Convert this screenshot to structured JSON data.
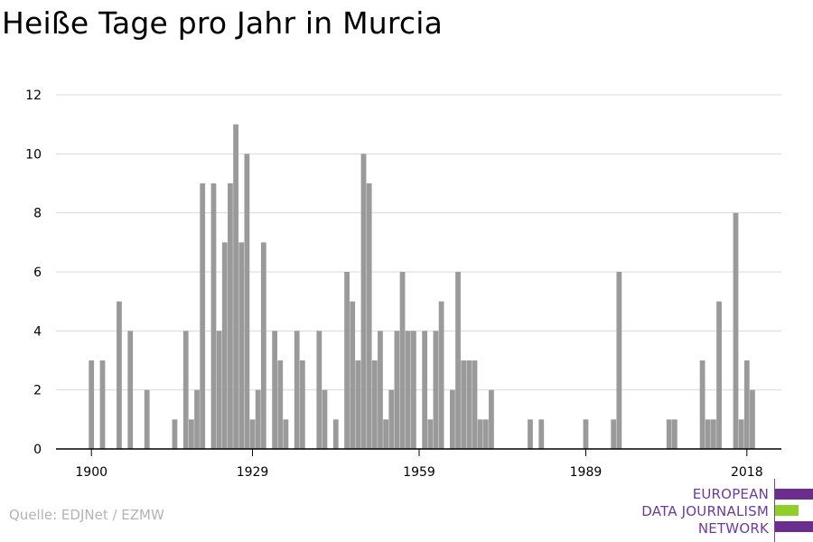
{
  "title": "Heiße Tage pro Jahr in Murcia",
  "source": "Quelle: EDJNet / EZMW",
  "logo": {
    "line1": "EUROPEAN",
    "line2": "DATA JOURNALISM",
    "line3": "NETWORK",
    "bar_colors": [
      "#6b2d8e",
      "#8fcf2a",
      "#6b2d8e"
    ]
  },
  "colors": {
    "bar": "#9a9a9a",
    "grid": "#d9d9d9",
    "axis": "#000000"
  },
  "chart_data": {
    "type": "bar",
    "title": "Heiße Tage pro Jahr in Murcia",
    "xlabel": "",
    "ylabel": "",
    "ylim": [
      0,
      12
    ],
    "xlim": [
      1900,
      2018
    ],
    "yticks": [
      0,
      2,
      4,
      6,
      8,
      10,
      12
    ],
    "xticks": [
      1900,
      1929,
      1959,
      1989,
      2018
    ],
    "grid": true,
    "x": [
      1900,
      1902,
      1905,
      1907,
      1910,
      1915,
      1917,
      1918,
      1919,
      1920,
      1922,
      1923,
      1924,
      1925,
      1926,
      1927,
      1928,
      1929,
      1930,
      1931,
      1933,
      1934,
      1935,
      1937,
      1938,
      1941,
      1942,
      1944,
      1946,
      1947,
      1948,
      1949,
      1950,
      1951,
      1952,
      1953,
      1954,
      1955,
      1956,
      1957,
      1958,
      1960,
      1961,
      1962,
      1963,
      1965,
      1966,
      1967,
      1968,
      1969,
      1970,
      1971,
      1972,
      1979,
      1981,
      1989,
      1994,
      1995,
      2004,
      2005,
      2010,
      2011,
      2012,
      2013,
      2016,
      2017,
      2018,
      2019
    ],
    "values": [
      3,
      3,
      5,
      4,
      2,
      1,
      4,
      1,
      2,
      9,
      9,
      4,
      7,
      9,
      11,
      7,
      10,
      1,
      2,
      7,
      4,
      3,
      1,
      4,
      3,
      4,
      2,
      1,
      6,
      5,
      3,
      10,
      9,
      3,
      4,
      1,
      2,
      4,
      6,
      4,
      4,
      4,
      1,
      4,
      5,
      2,
      6,
      3,
      3,
      3,
      1,
      1,
      2,
      1,
      1,
      1,
      1,
      6,
      1,
      1,
      3,
      1,
      1,
      5,
      8,
      1,
      3,
      2
    ]
  }
}
